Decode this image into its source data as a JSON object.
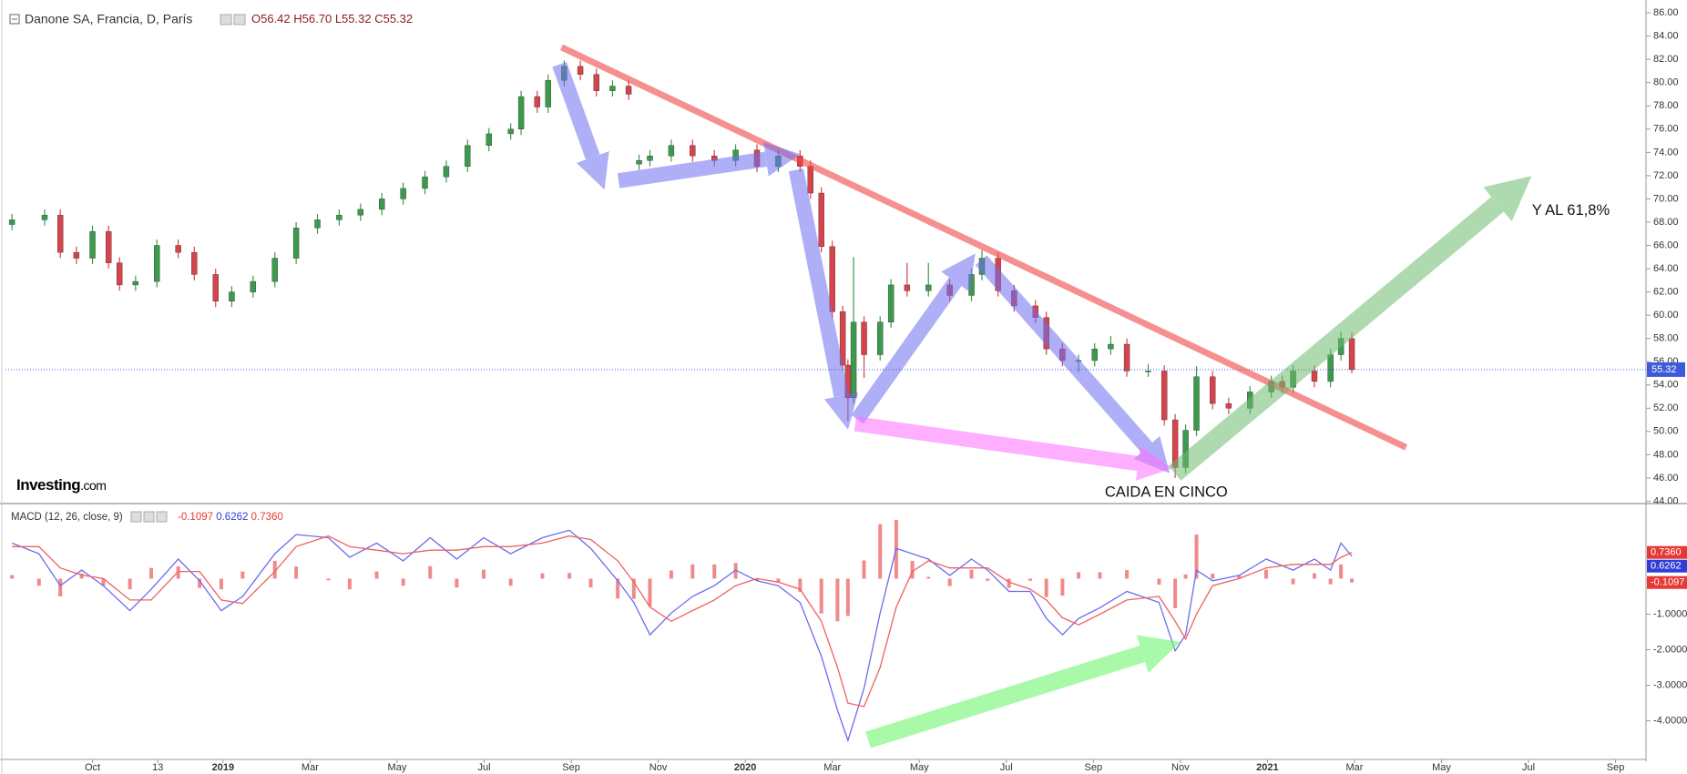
{
  "chart_data": [
    {
      "type": "candlestick",
      "title": "Danone SA, Francia, D, París",
      "ohlc_header": [
        "O56.42",
        "H56.70",
        "L55.32",
        "C55.32"
      ],
      "watermark": "Investing",
      "watermark_suffix": ".com",
      "annotations": [
        "Y AL 61,8%",
        "CAIDA EN CINCO"
      ],
      "up_color": "#3c9a4c",
      "down_color": "#d8434b",
      "last_price": 55.32,
      "last_price_color": "#3d5bd9",
      "xlim": [
        -2.0,
        35.7
      ],
      "ylim": [
        43.8,
        86.4
      ],
      "yticks": [
        {
          "value": 86,
          "label": "86.00"
        },
        {
          "value": 84,
          "label": "84.00"
        },
        {
          "value": 82,
          "label": "82.00"
        },
        {
          "value": 80,
          "label": "80.00"
        },
        {
          "value": 78,
          "label": "78.00"
        },
        {
          "value": 76,
          "label": "76.00"
        },
        {
          "value": 74,
          "label": "74.00"
        },
        {
          "value": 72,
          "label": "72.00"
        },
        {
          "value": 70,
          "label": "70.00"
        },
        {
          "value": 68,
          "label": "68.00"
        },
        {
          "value": 66,
          "label": "66.00"
        },
        {
          "value": 64,
          "label": "64.00"
        },
        {
          "value": 62,
          "label": "62.00"
        },
        {
          "value": 60,
          "label": "60.00"
        },
        {
          "value": 58,
          "label": "58.00"
        },
        {
          "value": 56,
          "label": "56.00"
        },
        {
          "value": 54,
          "label": "54.00"
        },
        {
          "value": 52,
          "label": "52.00"
        },
        {
          "value": 50,
          "label": "50.00"
        },
        {
          "value": 48,
          "label": "48.00"
        },
        {
          "value": 46,
          "label": "46.00"
        },
        {
          "value": 44,
          "label": "44.00"
        }
      ],
      "x": [
        -1.85,
        -1.1,
        -0.74,
        -0.37,
        0,
        0.37,
        0.62,
        0.99,
        1.48,
        1.97,
        2.34,
        2.83,
        3.2,
        3.69,
        4.19,
        4.68,
        5.17,
        5.67,
        6.16,
        6.65,
        7.14,
        7.64,
        8.13,
        8.62,
        9.11,
        9.61,
        9.85,
        10.22,
        10.47,
        10.84,
        11.21,
        11.58,
        11.95,
        12.32,
        12.56,
        12.81,
        13.3,
        13.79,
        14.29,
        14.78,
        15.27,
        15.76,
        16.26,
        16.5,
        16.75,
        17,
        17.24,
        17.36,
        17.49,
        17.73,
        18.1,
        18.35,
        18.72,
        19.21,
        19.7,
        20.2,
        20.44,
        20.81,
        21.18,
        21.67,
        21.92,
        22.29,
        22.66,
        23.03,
        23.4,
        23.77,
        24.26,
        24.63,
        24.88,
        25.12,
        25.37,
        25.74,
        26.11,
        26.6,
        27.09,
        27.34,
        27.59,
        28.08,
        28.45,
        28.69,
        28.94
      ],
      "open": [
        67.8,
        68.2,
        68.6,
        65.4,
        64.9,
        67.2,
        64.5,
        62.6,
        62.9,
        66.0,
        65.4,
        63.5,
        61.2,
        62.0,
        62.9,
        64.9,
        67.5,
        68.2,
        68.6,
        69.1,
        70.0,
        70.9,
        71.9,
        72.8,
        74.6,
        75.6,
        76.0,
        78.8,
        77.9,
        80.2,
        81.4,
        80.7,
        79.3,
        79.7,
        73.0,
        73.3,
        73.7,
        74.6,
        73.7,
        73.3,
        74.2,
        72.8,
        73.7,
        72.8,
        70.5,
        65.9,
        60.3,
        55.7,
        52.9,
        59.4,
        56.6,
        59.4,
        62.6,
        62.1,
        62.6,
        61.7,
        63.5,
        64.9,
        62.1,
        60.8,
        59.8,
        57.1,
        56.1,
        56.1,
        57.1,
        57.5,
        55.2,
        55.2,
        51.0,
        46.9,
        50.1,
        54.7,
        52.4,
        52.0,
        53.4,
        54.3,
        53.8,
        55.2,
        54.3,
        56.6,
        58.0
      ],
      "high": [
        68.7,
        69.1,
        69.1,
        65.9,
        67.7,
        67.7,
        65.0,
        63.4,
        66.5,
        66.5,
        65.9,
        64.0,
        62.5,
        63.4,
        65.4,
        68.0,
        68.7,
        69.1,
        69.6,
        70.5,
        71.4,
        72.4,
        73.3,
        75.1,
        76.1,
        76.5,
        79.3,
        79.3,
        80.7,
        81.9,
        81.9,
        81.2,
        80.2,
        80.2,
        73.8,
        74.2,
        75.1,
        75.1,
        74.2,
        74.7,
        74.7,
        74.2,
        74.2,
        73.3,
        71.0,
        66.4,
        60.8,
        56.2,
        65.0,
        59.9,
        59.9,
        63.1,
        64.5,
        64.5,
        63.1,
        64.0,
        65.6,
        65.4,
        62.6,
        61.3,
        60.3,
        57.6,
        56.6,
        57.6,
        58.2,
        58.0,
        55.8,
        55.7,
        51.5,
        50.6,
        55.6,
        55.2,
        52.9,
        53.9,
        54.8,
        54.8,
        55.7,
        55.7,
        57.1,
        58.6,
        58.5
      ],
      "low": [
        67.3,
        67.7,
        64.9,
        64.4,
        64.4,
        64.0,
        62.1,
        62.1,
        62.4,
        64.9,
        63.0,
        60.7,
        60.7,
        61.5,
        62.4,
        64.4,
        67.0,
        67.7,
        68.1,
        68.6,
        69.5,
        70.4,
        71.4,
        72.3,
        74.1,
        75.1,
        75.5,
        77.4,
        77.4,
        79.7,
        80.2,
        78.8,
        78.8,
        78.5,
        72.5,
        72.8,
        73.2,
        73.2,
        72.8,
        72.8,
        72.3,
        72.3,
        72.3,
        70.0,
        65.4,
        59.8,
        55.2,
        50.9,
        52.4,
        54.6,
        56.1,
        58.9,
        61.6,
        61.6,
        61.2,
        61.2,
        63.0,
        61.6,
        60.3,
        59.3,
        56.6,
        55.6,
        55.1,
        55.6,
        56.6,
        54.7,
        54.7,
        50.5,
        46.0,
        46.4,
        49.6,
        51.9,
        51.5,
        51.5,
        52.9,
        53.3,
        53.3,
        53.8,
        53.8,
        56.1,
        55.0
      ],
      "close": [
        68.2,
        68.6,
        65.4,
        64.9,
        67.2,
        64.5,
        62.6,
        62.9,
        66.0,
        65.4,
        63.5,
        61.2,
        62.0,
        62.9,
        64.9,
        67.5,
        68.2,
        68.6,
        69.1,
        70.0,
        70.9,
        71.9,
        72.8,
        74.6,
        75.6,
        76.0,
        78.8,
        77.9,
        80.2,
        81.4,
        80.7,
        79.3,
        79.7,
        79.0,
        73.3,
        73.7,
        74.6,
        73.7,
        73.3,
        74.2,
        72.8,
        73.7,
        72.8,
        70.5,
        65.9,
        60.3,
        55.7,
        52.9,
        59.4,
        56.6,
        59.4,
        62.6,
        62.1,
        62.6,
        61.7,
        63.5,
        64.9,
        62.1,
        60.8,
        59.8,
        57.1,
        56.1,
        56.1,
        57.1,
        57.5,
        55.2,
        55.2,
        51.0,
        46.9,
        50.1,
        54.7,
        52.4,
        52.0,
        53.4,
        54.3,
        53.8,
        55.2,
        54.3,
        56.6,
        58.0,
        55.32
      ]
    },
    {
      "type": "line",
      "title": "MACD (12, 26, close, 9)",
      "legend_values": [
        {
          "value": -0.1097,
          "label": "-0.1097",
          "color": "#e53935"
        },
        {
          "value": 0.6262,
          "label": "0.6262",
          "color": "#2f3fd6"
        },
        {
          "value": 0.736,
          "label": "0.7360",
          "color": "#e53935"
        }
      ],
      "xlim": [
        -2.0,
        35.7
      ],
      "ylim": [
        -5.06,
        2.06
      ],
      "yticks": [
        {
          "value": -1,
          "label": "-1.0000"
        },
        {
          "value": -2,
          "label": "-2.0000"
        },
        {
          "value": -3,
          "label": "-3.0000"
        },
        {
          "value": -4,
          "label": "-4.0000"
        }
      ],
      "xticks": [
        {
          "value": 0,
          "label": "Oct"
        },
        {
          "value": 1.5,
          "label": "13"
        },
        {
          "value": 3,
          "label": "2019"
        },
        {
          "value": 5,
          "label": "Mar"
        },
        {
          "value": 7,
          "label": "May"
        },
        {
          "value": 9,
          "label": "Jul"
        },
        {
          "value": 11,
          "label": "Sep"
        },
        {
          "value": 13,
          "label": "Nov"
        },
        {
          "value": 15,
          "label": "2020"
        },
        {
          "value": 17,
          "label": "Mar"
        },
        {
          "value": 19,
          "label": "May"
        },
        {
          "value": 21,
          "label": "Jul"
        },
        {
          "value": 23,
          "label": "Sep"
        },
        {
          "value": 25,
          "label": "Nov"
        },
        {
          "value": 27,
          "label": "2021"
        },
        {
          "value": 29,
          "label": "Mar"
        },
        {
          "value": 31,
          "label": "May"
        },
        {
          "value": 33,
          "label": "Jul"
        },
        {
          "value": 35,
          "label": "Sep"
        }
      ],
      "x": [
        -1.85,
        -1.23,
        -0.74,
        -0.25,
        0.25,
        0.86,
        1.35,
        1.97,
        2.46,
        2.96,
        3.45,
        4.19,
        4.68,
        5.42,
        5.91,
        6.53,
        7.14,
        7.76,
        8.37,
        8.99,
        9.61,
        10.34,
        10.96,
        11.45,
        12.07,
        12.44,
        12.81,
        13.3,
        13.79,
        14.29,
        14.78,
        15.27,
        15.76,
        16.26,
        16.75,
        17.12,
        17.36,
        17.73,
        18.1,
        18.47,
        18.84,
        19.21,
        19.7,
        20.2,
        20.57,
        21.06,
        21.55,
        21.92,
        22.29,
        22.66,
        23.15,
        23.77,
        24.51,
        24.88,
        25.12,
        25.37,
        25.74,
        26.35,
        26.97,
        27.59,
        28.08,
        28.45,
        28.69,
        28.94
      ],
      "series": [
        {
          "type": "bar",
          "color": "#f08a8a",
          "values": [
            0.1,
            -0.2,
            -0.5,
            0.14,
            -0.2,
            -0.3,
            0.3,
            0.35,
            -0.26,
            -0.3,
            0.2,
            0.5,
            0.34,
            -0.05,
            -0.3,
            0.2,
            -0.2,
            0.35,
            -0.25,
            0.25,
            -0.2,
            0.15,
            0.16,
            -0.25,
            -0.56,
            -0.57,
            -0.78,
            0.23,
            0.4,
            0.4,
            0.44,
            -0.06,
            -0.1,
            -0.37,
            -0.98,
            -1.2,
            -1.05,
            0.51,
            1.53,
            1.65,
            0.5,
            0.05,
            -0.21,
            0.25,
            -0.06,
            -0.26,
            -0.06,
            -0.52,
            -0.48,
            0.18,
            0.18,
            0.24,
            -0.17,
            -0.83,
            0.12,
            1.24,
            0.14,
            0.09,
            0.25,
            -0.16,
            0.15,
            -0.16,
            0.4,
            -0.1097
          ]
        },
        {
          "type": "line",
          "color": "#6b6bf0",
          "values": [
            1.0,
            0.7,
            -0.2,
            0.24,
            -0.2,
            -0.9,
            -0.3,
            0.55,
            -0.06,
            -0.9,
            -0.5,
            0.7,
            1.24,
            1.15,
            0.6,
            1.0,
            0.5,
            1.15,
            0.55,
            1.15,
            0.7,
            1.15,
            1.36,
            0.85,
            -0.06,
            -0.67,
            -1.58,
            -0.97,
            -0.5,
            -0.2,
            0.24,
            -0.06,
            -0.2,
            -0.67,
            -2.18,
            -3.7,
            -4.55,
            -3.09,
            -0.97,
            0.85,
            0.7,
            0.55,
            0.09,
            0.55,
            0.24,
            -0.36,
            -0.36,
            -1.12,
            -1.58,
            -1.12,
            -0.82,
            -0.36,
            -0.67,
            -2.03,
            -1.58,
            0.24,
            -0.06,
            0.09,
            0.55,
            0.24,
            0.55,
            0.24,
            1.0,
            0.6262
          ]
        },
        {
          "type": "line",
          "color": "#f06060",
          "values": [
            0.9,
            0.9,
            0.3,
            0.1,
            0.0,
            -0.6,
            -0.6,
            0.2,
            0.2,
            -0.6,
            -0.7,
            0.2,
            0.9,
            1.2,
            0.9,
            0.8,
            0.7,
            0.8,
            0.8,
            0.9,
            0.9,
            1.0,
            1.2,
            1.1,
            0.5,
            -0.1,
            -0.8,
            -1.2,
            -0.9,
            -0.6,
            -0.2,
            0.0,
            -0.1,
            -0.3,
            -1.2,
            -2.5,
            -3.5,
            -3.6,
            -2.5,
            -0.8,
            0.2,
            0.5,
            0.3,
            0.3,
            0.3,
            -0.1,
            -0.3,
            -0.6,
            -1.1,
            -1.3,
            -1.0,
            -0.6,
            -0.5,
            -1.2,
            -1.7,
            -1.0,
            -0.2,
            0.0,
            0.3,
            0.4,
            0.4,
            0.4,
            0.6,
            0.736
          ]
        }
      ]
    }
  ]
}
